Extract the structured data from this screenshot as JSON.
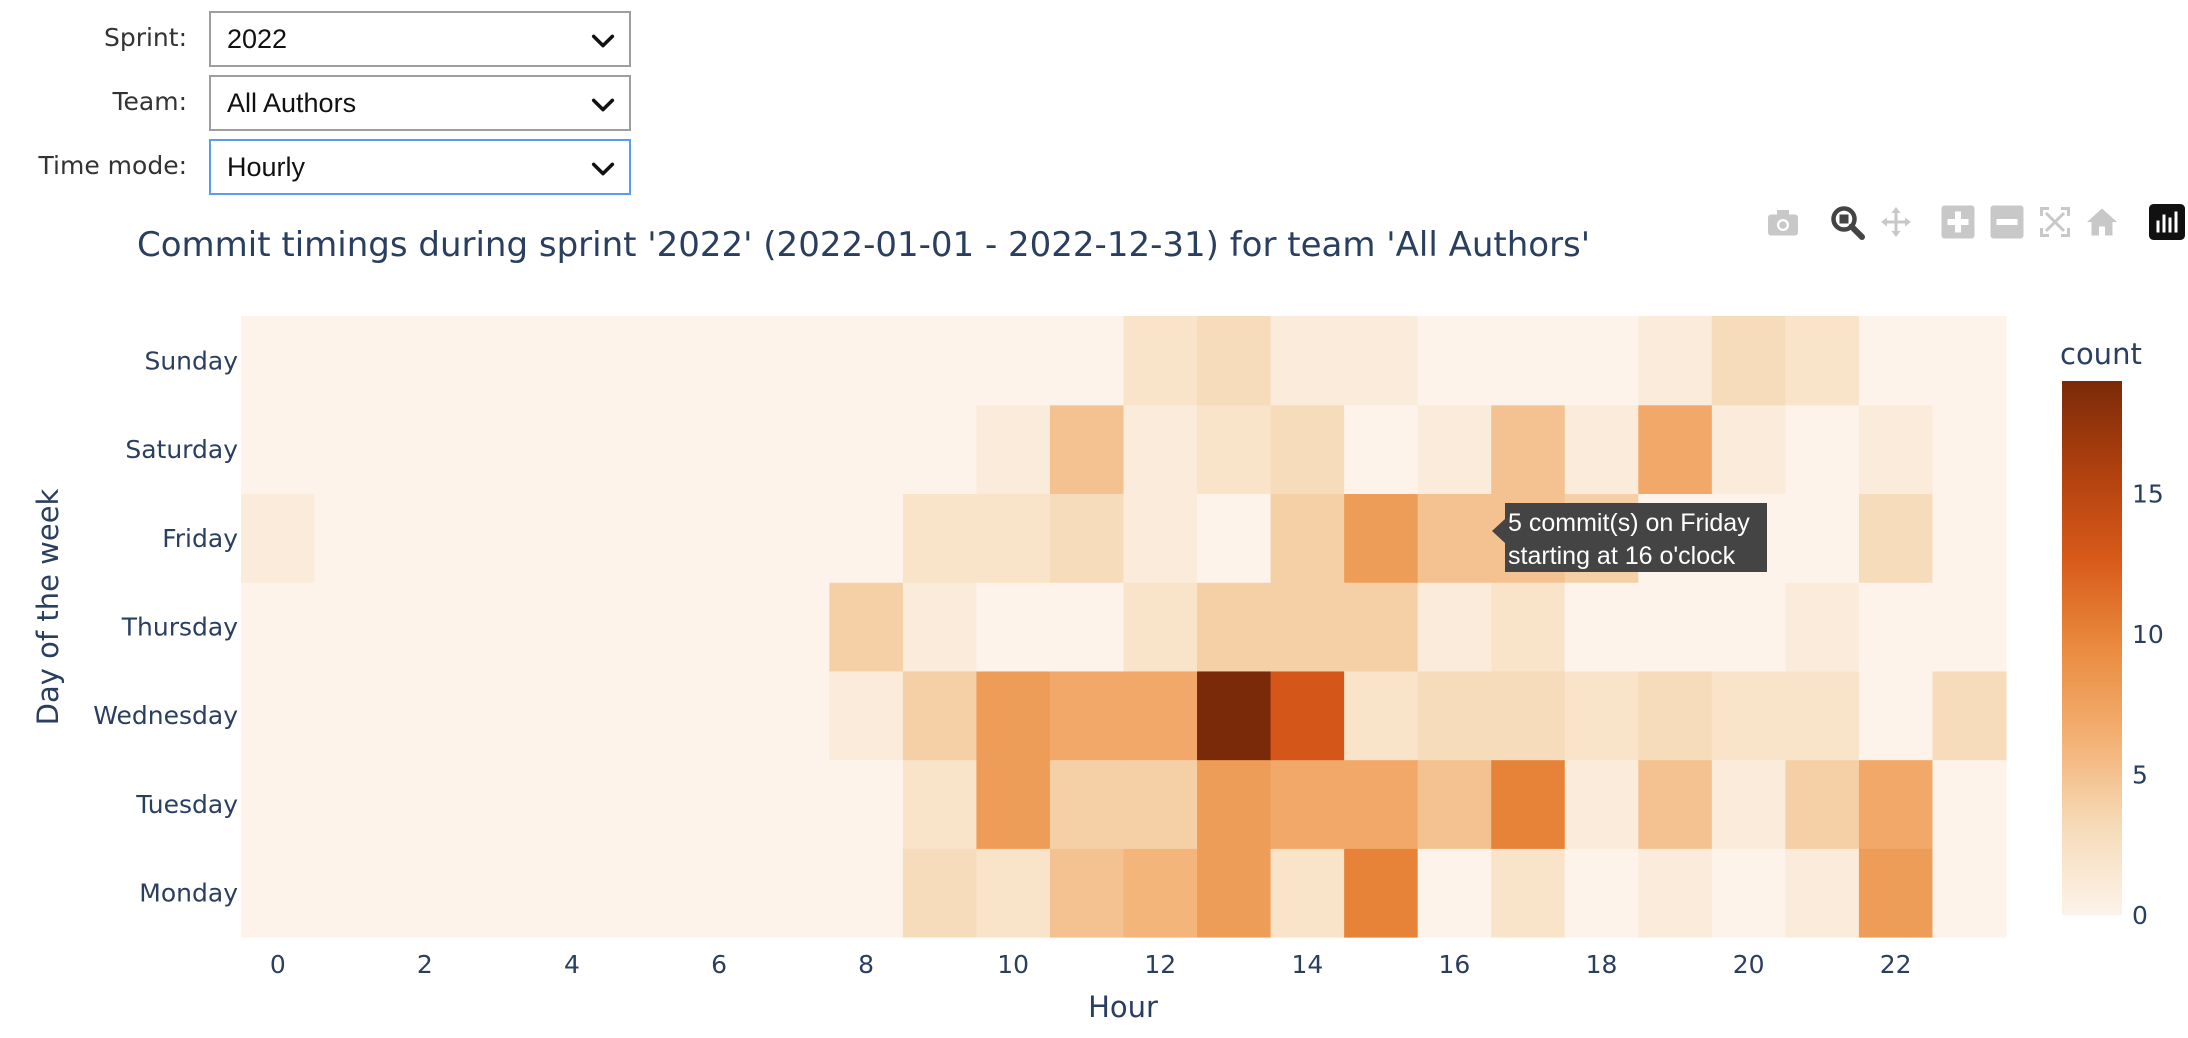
{
  "controls": {
    "sprint": {
      "label": "Sprint:",
      "value": "2022"
    },
    "team": {
      "label": "Team:",
      "value": "All Authors"
    },
    "time_mode": {
      "label": "Time mode:",
      "value": "Hourly"
    }
  },
  "toolbar": {
    "icons": [
      "camera-icon",
      "zoom-icon",
      "pan-icon",
      "zoom-in-icon",
      "zoom-out-icon",
      "autoscale-icon",
      "reset-axes-icon",
      "plotly-logo-icon"
    ]
  },
  "tooltip": {
    "line1": "5 commit(s) on Friday",
    "line2": "starting at 16 o'clock"
  },
  "chart_data": {
    "type": "heatmap",
    "title": "Commit timings during sprint '2022' (2022-01-01 - 2022-12-31) for team 'All Authors'",
    "xlabel": "Hour",
    "ylabel": "Day of the week",
    "x": [
      0,
      1,
      2,
      3,
      4,
      5,
      6,
      7,
      8,
      9,
      10,
      11,
      12,
      13,
      14,
      15,
      16,
      17,
      18,
      19,
      20,
      21,
      22,
      23
    ],
    "x_ticks": [
      0,
      2,
      4,
      6,
      8,
      10,
      12,
      14,
      16,
      18,
      20,
      22
    ],
    "y": [
      "Monday",
      "Tuesday",
      "Wednesday",
      "Thursday",
      "Friday",
      "Saturday",
      "Sunday"
    ],
    "z": [
      [
        0,
        0,
        0,
        0,
        0,
        0,
        0,
        0,
        0,
        3,
        2,
        5,
        6,
        8,
        2,
        10,
        0,
        2,
        0,
        1,
        0,
        1,
        8,
        0
      ],
      [
        0,
        0,
        0,
        0,
        0,
        0,
        0,
        0,
        0,
        2,
        8,
        4,
        4,
        8,
        7,
        7,
        5,
        10,
        1,
        5,
        1,
        4,
        7,
        0
      ],
      [
        0,
        0,
        0,
        0,
        0,
        0,
        0,
        0,
        1,
        4,
        8,
        7,
        7,
        19,
        13,
        2,
        3,
        3,
        2,
        3,
        2,
        2,
        0,
        3
      ],
      [
        0,
        0,
        0,
        0,
        0,
        0,
        0,
        0,
        4,
        1,
        0,
        0,
        2,
        4,
        4,
        4,
        1,
        2,
        0,
        0,
        0,
        1,
        0,
        0
      ],
      [
        1,
        0,
        0,
        0,
        0,
        0,
        0,
        0,
        0,
        2,
        2,
        3,
        1,
        0,
        4,
        8,
        5,
        5,
        4,
        0,
        0,
        0,
        3,
        0
      ],
      [
        0,
        0,
        0,
        0,
        0,
        0,
        0,
        0,
        0,
        0,
        1,
        5,
        1,
        2,
        3,
        0,
        1,
        5,
        1,
        7,
        1,
        0,
        1,
        0
      ],
      [
        0,
        0,
        0,
        0,
        0,
        0,
        0,
        0,
        0,
        0,
        0,
        0,
        2,
        3,
        1,
        1,
        0,
        0,
        0,
        1,
        3,
        2,
        0,
        0
      ]
    ],
    "zmin": 0,
    "zmax": 19,
    "colorbar": {
      "title": "count",
      "ticks": [
        0,
        5,
        10,
        15
      ]
    },
    "colorscale": [
      "#fdf3ea",
      "#f6dbb8",
      "#f3b073",
      "#ea8b3f",
      "#d85a1a",
      "#b0400f",
      "#7a2a08"
    ]
  }
}
